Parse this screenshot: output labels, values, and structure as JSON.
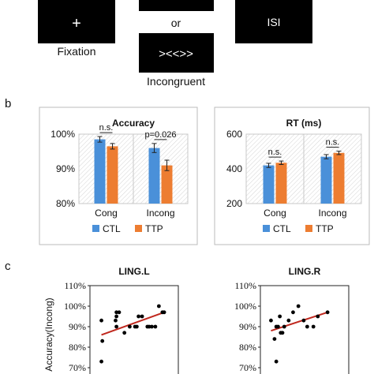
{
  "panel_a": {
    "box1_symbol": "+",
    "box1_label": "Fixation",
    "or_text": "or",
    "box3_symbol": "><<>>",
    "box3_label": "Incongruent",
    "box4_text": "ISI"
  },
  "panel_b": {
    "label": "b",
    "legend": {
      "ctl": "CTL",
      "ttp": "TTP"
    },
    "colors": {
      "ctl": "#4a90d9",
      "ttp": "#ed7d31"
    }
  },
  "panel_c": {
    "label": "c"
  },
  "chart_data": [
    {
      "type": "bar",
      "title": "Accuracy",
      "categories": [
        "Cong",
        "Incong"
      ],
      "series": [
        {
          "name": "CTL",
          "values": [
            98.5,
            96.0
          ],
          "errors": [
            0.8,
            1.3
          ]
        },
        {
          "name": "TTP",
          "values": [
            96.5,
            91.0
          ],
          "errors": [
            0.8,
            1.5
          ]
        }
      ],
      "yticks": [
        "100%",
        "90%",
        "80%"
      ],
      "ylim": [
        80,
        100
      ],
      "annotations": [
        "n.s.",
        "p=0.026"
      ],
      "legend": "bottom"
    },
    {
      "type": "bar",
      "title": "RT (ms)",
      "categories": [
        "Cong",
        "Incong"
      ],
      "series": [
        {
          "name": "CTL",
          "values": [
            420,
            470
          ],
          "errors": [
            12,
            12
          ]
        },
        {
          "name": "TTP",
          "values": [
            435,
            492
          ],
          "errors": [
            10,
            10
          ]
        }
      ],
      "yticks": [
        "600",
        "400",
        "200"
      ],
      "ylim": [
        200,
        600
      ],
      "annotations": [
        "n.s.",
        "n.s."
      ],
      "legend": "bottom"
    },
    {
      "type": "scatter",
      "title": "LING.L",
      "ylabel": "Accuracy(Incong)",
      "yticks": [
        "110%",
        "100%",
        "90%",
        "80%",
        "70%"
      ],
      "ylim": [
        70,
        110
      ],
      "xlim": [
        0,
        10
      ],
      "points": [
        [
          1.3,
          93
        ],
        [
          1.4,
          83
        ],
        [
          1.3,
          73
        ],
        [
          2.9,
          93
        ],
        [
          3.0,
          95
        ],
        [
          3.0,
          97
        ],
        [
          3.3,
          97
        ],
        [
          3.0,
          90
        ],
        [
          3.9,
          87
        ],
        [
          4.5,
          90
        ],
        [
          5.1,
          90
        ],
        [
          5.3,
          90
        ],
        [
          5.5,
          95
        ],
        [
          5.9,
          95
        ],
        [
          6.5,
          90
        ],
        [
          6.7,
          90
        ],
        [
          7.0,
          90
        ],
        [
          7.4,
          90
        ],
        [
          7.8,
          100
        ],
        [
          8.2,
          97
        ],
        [
          8.4,
          97
        ]
      ],
      "trendline": [
        [
          1.3,
          86
        ],
        [
          8.4,
          97
        ]
      ]
    },
    {
      "type": "scatter",
      "title": "LING.R",
      "yticks": [
        "110%",
        "100%",
        "90%",
        "80%",
        "70%"
      ],
      "ylim": [
        70,
        110
      ],
      "xlim": [
        0,
        10
      ],
      "points": [
        [
          1.2,
          93
        ],
        [
          1.6,
          84
        ],
        [
          1.8,
          90
        ],
        [
          1.8,
          73
        ],
        [
          2.0,
          90
        ],
        [
          2.2,
          95
        ],
        [
          2.3,
          87
        ],
        [
          2.5,
          87
        ],
        [
          2.7,
          90
        ],
        [
          3.2,
          93
        ],
        [
          3.7,
          97
        ],
        [
          4.3,
          100
        ],
        [
          4.9,
          93
        ],
        [
          5.3,
          90
        ],
        [
          6.0,
          90
        ],
        [
          6.5,
          95
        ],
        [
          7.6,
          97
        ]
      ],
      "trendline": [
        [
          1.2,
          88
        ],
        [
          7.6,
          97
        ]
      ]
    }
  ]
}
